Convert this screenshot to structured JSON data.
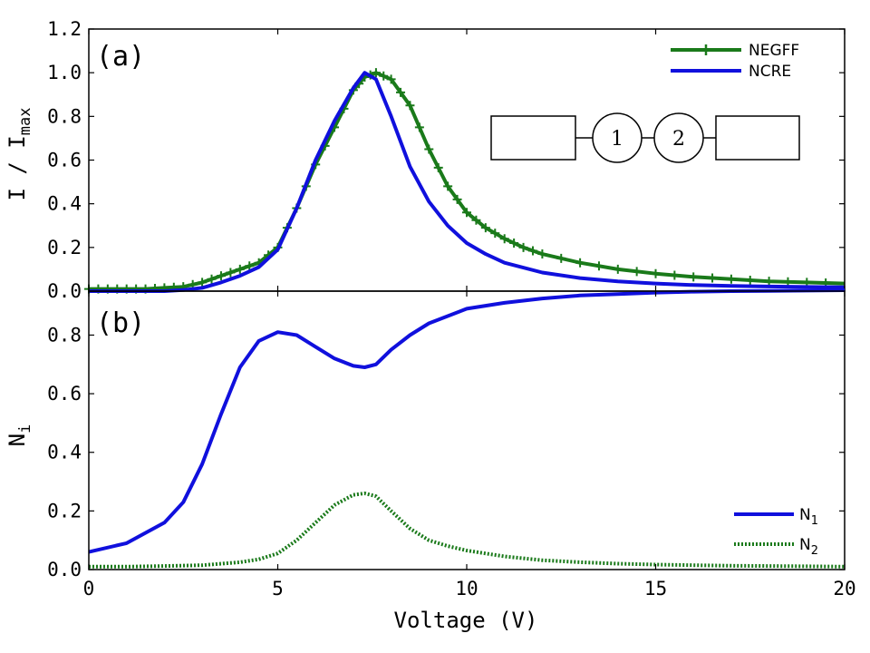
{
  "colors": {
    "negff": "#1a7a1a",
    "ncre": "#1010dd",
    "n1": "#1010dd",
    "n2": "#1a7a1a",
    "axes": "#000000"
  },
  "chart_data": [
    {
      "type": "line",
      "panel": "(a)",
      "ylabel_main": "I / I",
      "ylabel_sub": "max",
      "xlim": [
        0,
        20
      ],
      "ylim": [
        0,
        1.2
      ],
      "yticks": [
        "0.0",
        "0.2",
        "0.4",
        "0.6",
        "0.8",
        "1.0",
        "1.2"
      ],
      "legend_position": "top-right",
      "series": [
        {
          "name": "NEGFF",
          "style": "solid line with + markers",
          "x": [
            0,
            0.5,
            1,
            1.5,
            2,
            2.5,
            3,
            3.5,
            4,
            4.5,
            5,
            5.5,
            6,
            6.5,
            7,
            7.3,
            7.6,
            8,
            8.5,
            9,
            9.5,
            10,
            10.5,
            11,
            11.5,
            12,
            13,
            14,
            15,
            16,
            17,
            18,
            19,
            20
          ],
          "y": [
            0.01,
            0.01,
            0.01,
            0.01,
            0.015,
            0.02,
            0.04,
            0.07,
            0.1,
            0.13,
            0.2,
            0.38,
            0.58,
            0.75,
            0.92,
            0.98,
            1.0,
            0.97,
            0.85,
            0.65,
            0.48,
            0.36,
            0.29,
            0.24,
            0.2,
            0.17,
            0.13,
            0.1,
            0.08,
            0.065,
            0.055,
            0.045,
            0.04,
            0.035
          ]
        },
        {
          "name": "NCRE",
          "style": "solid line",
          "x": [
            0,
            1,
            2,
            2.5,
            3,
            3.5,
            4,
            4.5,
            5,
            5.5,
            6,
            6.5,
            7,
            7.3,
            7.6,
            8,
            8.5,
            9,
            9.5,
            10,
            10.5,
            11,
            12,
            13,
            14,
            15,
            16,
            17,
            18,
            19,
            20
          ],
          "y": [
            0.0,
            0.0,
            0.0,
            0.005,
            0.015,
            0.04,
            0.07,
            0.11,
            0.19,
            0.38,
            0.6,
            0.78,
            0.93,
            1.0,
            0.97,
            0.8,
            0.57,
            0.41,
            0.3,
            0.22,
            0.17,
            0.13,
            0.085,
            0.06,
            0.045,
            0.035,
            0.028,
            0.024,
            0.021,
            0.019,
            0.018
          ]
        }
      ],
      "inset": {
        "labels": [
          "1",
          "2"
        ]
      }
    },
    {
      "type": "line",
      "panel": "(b)",
      "xlabel": "Voltage (V)",
      "ylabel_main": "N",
      "ylabel_sub": "i",
      "xlim": [
        0,
        20
      ],
      "ylim": [
        0,
        0.95
      ],
      "xticks": [
        "0",
        "5",
        "10",
        "15",
        "20"
      ],
      "yticks": [
        "0.0",
        "0.2",
        "0.4",
        "0.6",
        "0.8"
      ],
      "legend_position": "bottom-right",
      "series": [
        {
          "name": "N",
          "sub": "1",
          "style": "solid",
          "x": [
            0,
            1,
            2,
            2.5,
            3,
            3.5,
            4,
            4.5,
            5,
            5.5,
            6,
            6.5,
            7,
            7.3,
            7.6,
            8,
            8.5,
            9,
            10,
            11,
            12,
            13,
            14,
            15,
            16,
            17,
            18,
            19,
            20
          ],
          "y": [
            0.06,
            0.09,
            0.16,
            0.23,
            0.36,
            0.53,
            0.69,
            0.78,
            0.81,
            0.8,
            0.76,
            0.72,
            0.695,
            0.69,
            0.7,
            0.75,
            0.8,
            0.84,
            0.89,
            0.91,
            0.925,
            0.935,
            0.94,
            0.945,
            0.948,
            0.95,
            0.951,
            0.952,
            0.953
          ]
        },
        {
          "name": "N",
          "sub": "2",
          "style": "dotted",
          "x": [
            0,
            1,
            2,
            3,
            4,
            4.5,
            5,
            5.5,
            6,
            6.5,
            7,
            7.3,
            7.6,
            8,
            8.5,
            9,
            9.5,
            10,
            11,
            12,
            13,
            14,
            15,
            16,
            17,
            18,
            19,
            20
          ],
          "y": [
            0.01,
            0.01,
            0.012,
            0.015,
            0.025,
            0.035,
            0.055,
            0.1,
            0.16,
            0.22,
            0.255,
            0.26,
            0.25,
            0.2,
            0.14,
            0.1,
            0.08,
            0.065,
            0.045,
            0.032,
            0.025,
            0.02,
            0.017,
            0.015,
            0.013,
            0.012,
            0.011,
            0.01
          ]
        }
      ]
    }
  ]
}
